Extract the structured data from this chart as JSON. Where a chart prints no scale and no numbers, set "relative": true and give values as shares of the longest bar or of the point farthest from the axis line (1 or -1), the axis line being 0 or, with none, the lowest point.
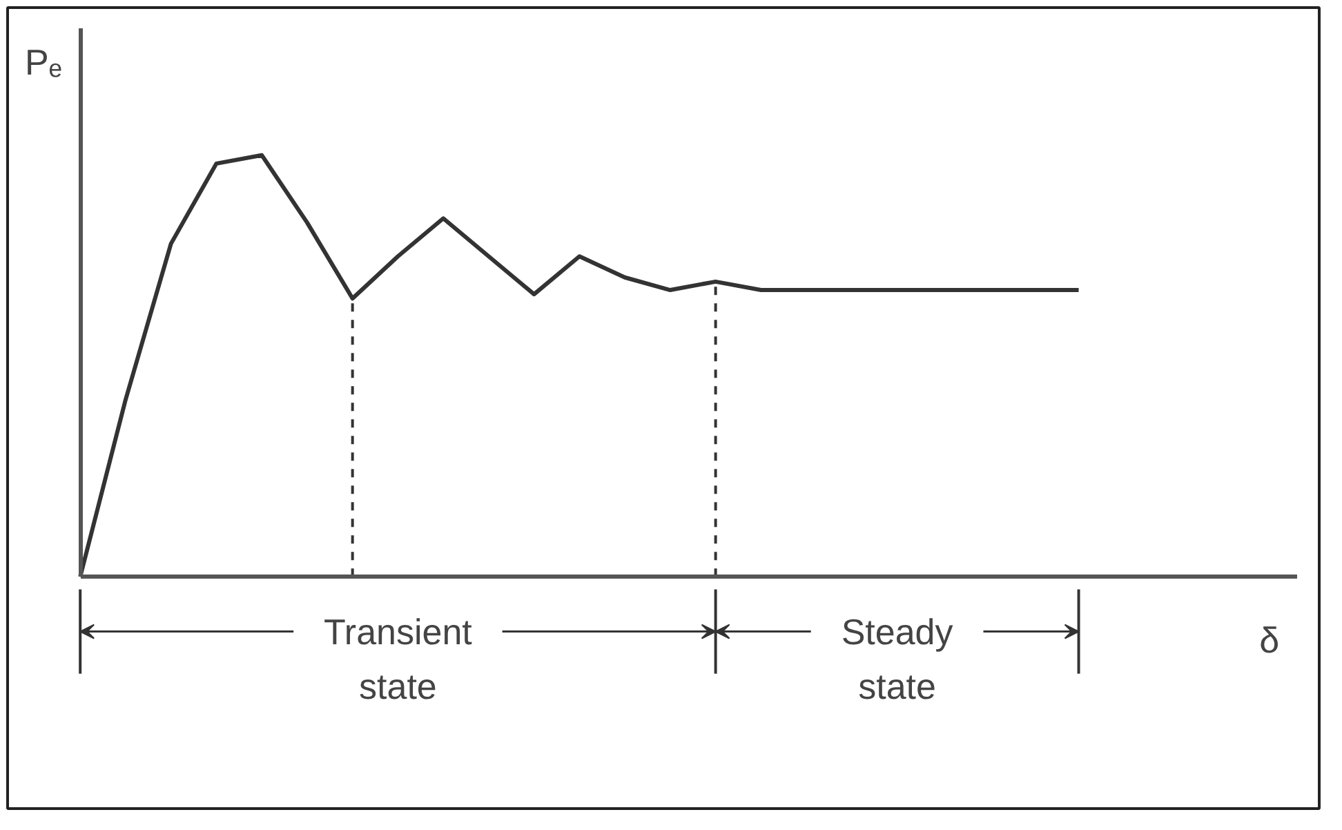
{
  "chart_data": {
    "type": "line",
    "relative": true,
    "xlabel": "δ",
    "ylabel": "Pₑ",
    "grid": false,
    "line_style": "solid",
    "categories": [
      null,
      null,
      null,
      null,
      null,
      null,
      null,
      null,
      null,
      null,
      null,
      null,
      null,
      null,
      null,
      null,
      null,
      null,
      null,
      null,
      null,
      null,
      null
    ],
    "series": [
      {
        "color": "#333333",
        "values": [
          0,
          0.42,
          0.79,
          0.98,
          1,
          0.84,
          0.66,
          0.76,
          0.85,
          0.76,
          0.67,
          0.76,
          0.71,
          0.68,
          0.7,
          0.68,
          0.68,
          0.68,
          0.68,
          0.68,
          0.68,
          0.68,
          0.68
        ]
      }
    ],
    "annotations": [
      "Transient state",
      "Steady state"
    ]
  }
}
